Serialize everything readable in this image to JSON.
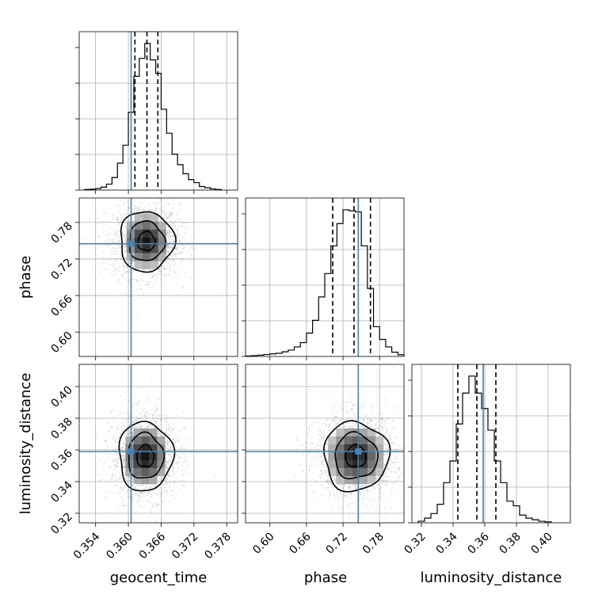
{
  "chart_data": {
    "type": "corner",
    "parameters": [
      "geocent_time",
      "phase",
      "luminosity_distance"
    ],
    "truth": {
      "geocent_time": 0.3605,
      "phase": 0.745,
      "luminosity_distance": 0.359
    },
    "axes": {
      "geocent_time": {
        "range": [
          0.351,
          0.38
        ],
        "ticks": [
          0.354,
          0.36,
          0.366,
          0.372,
          0.378
        ],
        "tick_labels": [
          "0.354",
          "0.360",
          "0.366",
          "0.372",
          "0.378"
        ]
      },
      "phase": {
        "range": [
          0.56,
          0.82
        ],
        "ticks": [
          0.6,
          0.66,
          0.72,
          0.78
        ],
        "tick_labels": [
          "0.60",
          "0.66",
          "0.72",
          "0.78"
        ]
      },
      "luminosity_distance": {
        "range": [
          0.314,
          0.414
        ],
        "ticks": [
          0.32,
          0.34,
          0.36,
          0.38,
          0.4
        ],
        "tick_labels": [
          "0.32",
          "0.34",
          "0.36",
          "0.38",
          "0.40"
        ]
      }
    },
    "histograms": [
      {
        "parameter": "geocent_time",
        "bins": [
          0.352,
          0.353,
          0.354,
          0.355,
          0.356,
          0.357,
          0.358,
          0.359,
          0.36,
          0.361,
          0.362,
          0.363,
          0.364,
          0.365,
          0.366,
          0.367,
          0.368,
          0.369,
          0.37,
          0.371,
          0.372,
          0.373,
          0.374,
          0.375,
          0.376,
          0.377
        ],
        "counts": [
          2,
          3,
          5,
          10,
          20,
          42,
          90,
          150,
          260,
          380,
          440,
          490,
          435,
          390,
          270,
          190,
          120,
          85,
          55,
          35,
          25,
          12,
          8,
          4,
          2
        ],
        "quantiles": [
          0.3612,
          0.3634,
          0.3654
        ]
      },
      {
        "parameter": "phase",
        "bins": [
          0.56,
          0.57,
          0.58,
          0.59,
          0.6,
          0.61,
          0.62,
          0.63,
          0.64,
          0.65,
          0.66,
          0.67,
          0.68,
          0.69,
          0.7,
          0.71,
          0.72,
          0.73,
          0.74,
          0.75,
          0.76,
          0.77,
          0.78,
          0.79,
          0.8,
          0.81,
          0.82
        ],
        "counts": [
          2,
          4,
          6,
          9,
          12,
          15,
          22,
          30,
          45,
          65,
          110,
          170,
          280,
          390,
          520,
          625,
          690,
          685,
          680,
          520,
          320,
          140,
          80,
          45,
          20,
          8
        ],
        "quantiles": [
          0.703,
          0.738,
          0.765
        ]
      },
      {
        "parameter": "luminosity_distance",
        "bins": [
          0.318,
          0.322,
          0.326,
          0.33,
          0.334,
          0.338,
          0.342,
          0.346,
          0.35,
          0.354,
          0.358,
          0.362,
          0.366,
          0.37,
          0.374,
          0.378,
          0.382,
          0.386,
          0.39,
          0.394,
          0.398,
          0.402
        ],
        "counts": [
          5,
          15,
          30,
          60,
          130,
          200,
          320,
          420,
          475,
          420,
          370,
          300,
          200,
          130,
          70,
          55,
          25,
          15,
          10,
          5,
          3
        ],
        "quantiles": [
          0.343,
          0.355,
          0.367
        ]
      }
    ],
    "pairs": [
      {
        "x": "geocent_time",
        "y": "phase",
        "center": [
          0.3633,
          0.749
        ],
        "spread": [
          0.0026,
          0.026
        ]
      },
      {
        "x": "geocent_time",
        "y": "luminosity_distance",
        "center": [
          0.3631,
          0.356
        ],
        "spread": [
          0.0026,
          0.0115
        ]
      },
      {
        "x": "phase",
        "y": "luminosity_distance",
        "center": [
          0.741,
          0.356
        ],
        "spread": [
          0.028,
          0.0115
        ]
      }
    ],
    "grid": true,
    "colors": {
      "line": "#000000",
      "truth": "#4682b4",
      "grid": "#b0b0b0"
    }
  }
}
